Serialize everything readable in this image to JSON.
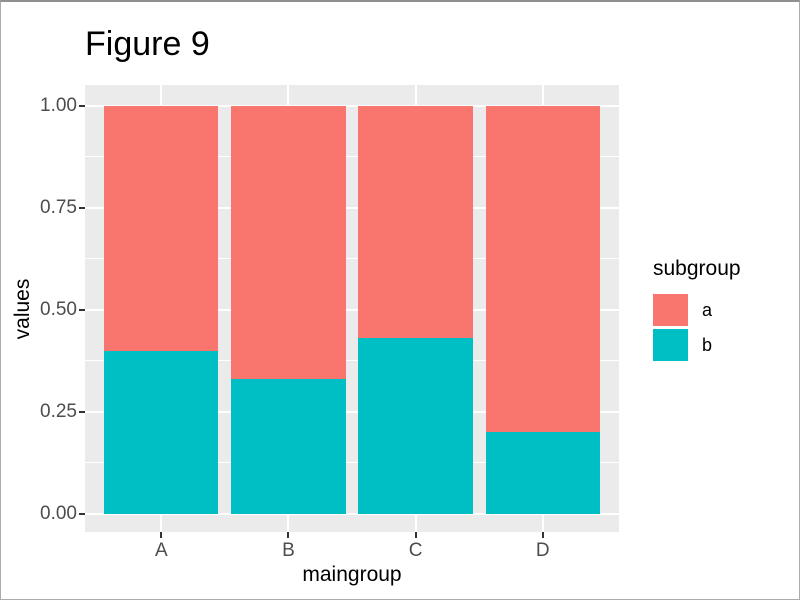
{
  "chart_data": {
    "type": "bar",
    "stacked": true,
    "position": "fill",
    "title": "Figure 9",
    "xlabel": "maingroup",
    "ylabel": "values",
    "categories": [
      "A",
      "B",
      "C",
      "D"
    ],
    "series": [
      {
        "name": "a",
        "color": "#F8766D",
        "values": [
          0.6,
          0.67,
          0.57,
          0.8
        ]
      },
      {
        "name": "b",
        "color": "#00BFC4",
        "values": [
          0.4,
          0.33,
          0.43,
          0.2
        ]
      }
    ],
    "y_ticks": [
      "1.00",
      "0.75",
      "0.50",
      "0.25",
      "0.00"
    ],
    "y_tick_values": [
      1.0,
      0.75,
      0.5,
      0.25,
      0.0
    ],
    "y_minor_values": [
      0.875,
      0.625,
      0.375,
      0.125
    ],
    "ylim": [
      0,
      1
    ],
    "legend_title": "subgroup",
    "legend_position": "right",
    "grid": true,
    "panel_bg": "#EBEBEB",
    "grid_color": "#FFFFFF",
    "tick_label_color": "#4D4D4D",
    "tick_mark_color": "#333333"
  }
}
